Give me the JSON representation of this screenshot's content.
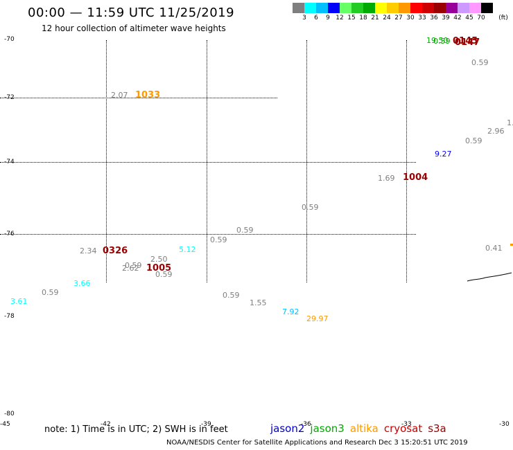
{
  "header": {
    "title": "00:00 — 11:59 UTC 11/25/2019",
    "subtitle": "12 hour collection of altimeter wave heights"
  },
  "colorbar": {
    "unit": "(ft)",
    "colors": [
      "#7f7f7f",
      "#00ffff",
      "#00bfff",
      "#0000ff",
      "#66ff66",
      "#22cc22",
      "#00aa00",
      "#ffff00",
      "#ffcc00",
      "#ff9900",
      "#ff0000",
      "#cc0000",
      "#990000",
      "#990099",
      "#cc99ff",
      "#ff99ff",
      "#000000"
    ],
    "labels": [
      "3",
      "6",
      "9",
      "12",
      "15",
      "18",
      "21",
      "24",
      "27",
      "30",
      "33",
      "36",
      "39",
      "42",
      "45",
      "70"
    ]
  },
  "axes": {
    "y_ticks": [
      "-70",
      "-72",
      "-74",
      "-76",
      "-78",
      "-80"
    ],
    "x_ticks": [
      "-45",
      "-42",
      "-39",
      "-36",
      "-33",
      "-30"
    ]
  },
  "chart_data": {
    "type": "scatter",
    "points": [
      {
        "label": "19.50",
        "color": "#00aa00"
      },
      {
        "label": "0.59",
        "color": "#00aa00"
      },
      {
        "label": "0145",
        "color": "#990000"
      },
      {
        "label": "0147",
        "color": "#990000"
      },
      {
        "label": "0.59",
        "color": "#7f7f7f"
      },
      {
        "label": "2.07",
        "color": "#7f7f7f"
      },
      {
        "label": "1033",
        "color": "#ff9900"
      },
      {
        "label": "2.96",
        "color": "#7f7f7f"
      },
      {
        "label": "1.",
        "color": "#7f7f7f"
      },
      {
        "label": "0.59",
        "color": "#7f7f7f"
      },
      {
        "label": "9.27",
        "color": "#0000ff"
      },
      {
        "label": "1.69",
        "color": "#7f7f7f"
      },
      {
        "label": "1004",
        "color": "#990000"
      },
      {
        "label": "0.59",
        "color": "#7f7f7f"
      },
      {
        "label": "0.59",
        "color": "#7f7f7f"
      },
      {
        "label": "0.59",
        "color": "#7f7f7f"
      },
      {
        "label": "2.34",
        "color": "#7f7f7f"
      },
      {
        "label": "0326",
        "color": "#990000"
      },
      {
        "label": "5.12",
        "color": "#00ffff"
      },
      {
        "label": "2.50",
        "color": "#7f7f7f"
      },
      {
        "label": "0.59",
        "color": "#7f7f7f"
      },
      {
        "label": "2.62",
        "color": "#7f7f7f"
      },
      {
        "label": "1005",
        "color": "#990000"
      },
      {
        "label": "0.59",
        "color": "#7f7f7f"
      },
      {
        "label": "0.41",
        "color": "#7f7f7f"
      },
      {
        "label": "3.66",
        "color": "#00ffff"
      },
      {
        "label": "3.61",
        "color": "#00ffff"
      },
      {
        "label": "0.59",
        "color": "#7f7f7f"
      },
      {
        "label": "0.59",
        "color": "#7f7f7f"
      },
      {
        "label": "1.55",
        "color": "#7f7f7f"
      },
      {
        "label": "7.92",
        "color": "#00bfff"
      },
      {
        "label": "29.97",
        "color": "#ff9900"
      }
    ]
  },
  "footer": {
    "note": "note: 1) Time is in UTC; 2) SWH is in feet",
    "legend": [
      {
        "label": "jason2",
        "color": "#0000cc"
      },
      {
        "label": "jason3",
        "color": "#00aa00"
      },
      {
        "label": "altika",
        "color": "#ff9900"
      },
      {
        "label": "cryosat",
        "color": "#cc0000"
      },
      {
        "label": "s3a",
        "color": "#990000"
      }
    ],
    "credit": "NOAA/NESDIS Center for Satellite Applications and Research    Dec  3 15:20:51 UTC 2019"
  }
}
